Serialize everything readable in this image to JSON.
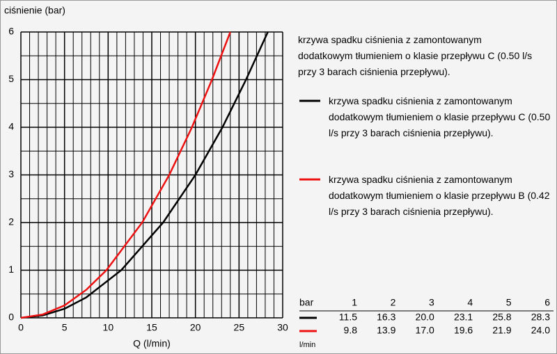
{
  "chart_data": {
    "type": "line",
    "y_label": "ciśnienie (bar)",
    "x_label": "Q (l/min)",
    "note": "krzywa spadku ciśnienia z zamontowanym dodatkowym tłumieniem o klasie przepływu C (0.50 l/s przy 3 barach ciśnienia przepływu).",
    "xlim": [
      0,
      30
    ],
    "ylim": [
      0,
      6
    ],
    "xticks": [
      0,
      5,
      10,
      15,
      20,
      25,
      30
    ],
    "yticks": [
      0,
      1,
      2,
      3,
      4,
      5,
      6
    ],
    "grid": true,
    "series": [
      {
        "name": "krzywa spadku ciśnienia z zamontowanym dodatkowym tłumieniem o klasie przepływu C (0.50 l/s przy 3 barach ciśnienia przepływu).",
        "color": "#000000",
        "x": [
          0,
          2.5,
          5,
          7.5,
          11.5,
          16.3,
          20.0,
          23.1,
          25.8,
          28.3
        ],
        "values": [
          0,
          0.05,
          0.19,
          0.43,
          1,
          2,
          3,
          4,
          5,
          6
        ]
      },
      {
        "name": "krzywa spadku ciśnienia z zamontowanym dodatkowym tłumieniem o klasie przepływu B (0.42 l/s przy 3 barach ciśnienia przepływu).",
        "color": "#ee1111",
        "x": [
          0,
          2.5,
          5,
          7.5,
          9.8,
          13.9,
          17.0,
          19.6,
          21.9,
          24.0
        ],
        "values": [
          0,
          0.07,
          0.26,
          0.59,
          1,
          2,
          3,
          4,
          5,
          6
        ]
      }
    ],
    "table": {
      "header_label": "bar",
      "columns": [
        1,
        2,
        3,
        4,
        5,
        6
      ],
      "unit_label": "l/min",
      "rows": [
        [
          "11.5",
          "16.3",
          "20.0",
          "23.1",
          "25.8",
          "28.3"
        ],
        [
          "9.8",
          "13.9",
          "17.0",
          "19.6",
          "21.9",
          "24.0"
        ]
      ]
    }
  }
}
